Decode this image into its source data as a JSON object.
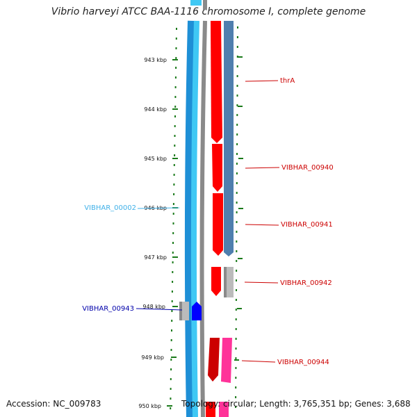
{
  "title": "Vibrio harveyi ATCC BAA-1116 chromosome I, complete genome",
  "footer": {
    "accession": "Accession: NC_009783",
    "topology": "Topology: circular; Length: 3,765,351 bp; Genes: 3,688"
  },
  "colors": {
    "backbone_outer": "#1e8fd6",
    "backbone_inner": "#3fc8f4",
    "gray_track": "#8a8a8a",
    "steel_track": "#4f7fae",
    "tick_green": "#1a7a1a",
    "cds_red": "#ff0000",
    "cds_dark_red": "#cc0000",
    "pink": "#ff3399",
    "light_gray": "#bbbbbb",
    "blue": "#0000ff",
    "label_red": "#cc0000",
    "label_cyan": "#3fb0e8",
    "label_blue": "#0000aa"
  },
  "scale": {
    "ticks": [
      {
        "label": "943 kbp"
      },
      {
        "label": "944 kbp"
      },
      {
        "label": "945 kbp"
      },
      {
        "label": "946 kbp"
      },
      {
        "label": "947 kbp"
      },
      {
        "label": "948 kbp"
      },
      {
        "label": "949 kbp"
      },
      {
        "label": "950 kbp"
      }
    ]
  },
  "features": [
    {
      "name": "thrA",
      "color": "label_red"
    },
    {
      "name": "VIBHAR_00940",
      "color": "label_red"
    },
    {
      "name": "VIBHAR_00002",
      "color": "label_cyan"
    },
    {
      "name": "VIBHAR_00941",
      "color": "label_red"
    },
    {
      "name": "VIBHAR_00942",
      "color": "label_red"
    },
    {
      "name": "VIBHAR_00943",
      "color": "label_blue"
    },
    {
      "name": "VIBHAR_00944",
      "color": "label_red"
    }
  ]
}
